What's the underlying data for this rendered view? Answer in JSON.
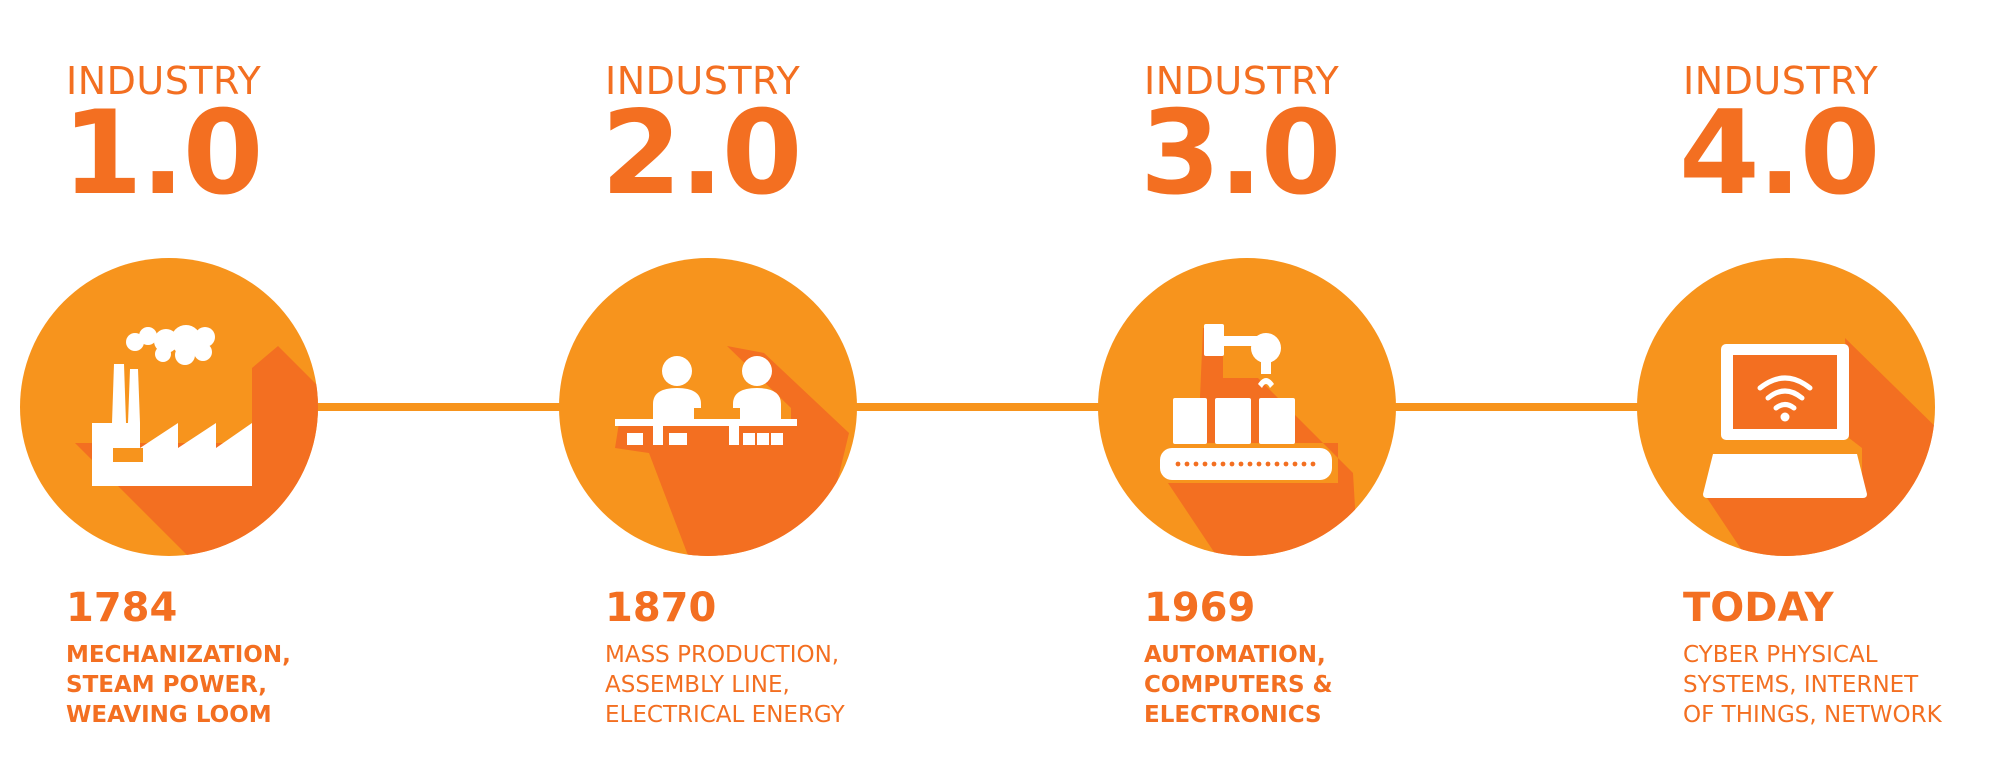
{
  "colors": {
    "orange": "#f7941d",
    "dark_orange": "#f36f21",
    "background": "#ffffff"
  },
  "stages": [
    {
      "label": "INDUSTRY",
      "version": "1.0",
      "year": "1784",
      "description": [
        "MECHANIZATION,",
        "STEAM POWER,",
        "WEAVING LOOM"
      ],
      "icon": "factory-icon"
    },
    {
      "label": "INDUSTRY",
      "version": "2.0",
      "year": "1870",
      "description": [
        "MASS PRODUCTION,",
        "ASSEMBLY LINE,",
        "ELECTRICAL ENERGY"
      ],
      "icon": "assembly-line-workers-icon"
    },
    {
      "label": "INDUSTRY",
      "version": "3.0",
      "year": "1969",
      "description": [
        "AUTOMATION,",
        "COMPUTERS &",
        "ELECTRONICS"
      ],
      "icon": "robotic-arm-conveyor-icon"
    },
    {
      "label": "INDUSTRY",
      "version": "4.0",
      "year": "TODAY",
      "description": [
        "CYBER PHYSICAL",
        "SYSTEMS, INTERNET",
        "OF THINGS, NETWORK"
      ],
      "icon": "laptop-wifi-icon"
    }
  ]
}
